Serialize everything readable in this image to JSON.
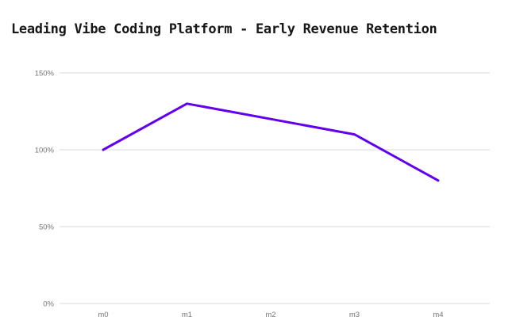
{
  "title": "Leading Vibe Coding Platform - Early Revenue Retention",
  "colors": {
    "line": "#6200ee",
    "grid": "#d9d9d9",
    "tick_label": "#757575",
    "title_text": "#171717",
    "background": "#ffffff"
  },
  "chart_data": {
    "type": "line",
    "categories": [
      "m0",
      "m1",
      "m2",
      "m3",
      "m4"
    ],
    "values": [
      100,
      130,
      120,
      110,
      80
    ],
    "title": "Leading Vibe Coding Platform - Early Revenue Retention",
    "xlabel": "",
    "ylabel": "",
    "ylim": [
      0,
      150
    ],
    "yticks": [
      0,
      50,
      100,
      150
    ],
    "ytick_labels": [
      "0%",
      "50%",
      "100%",
      "150%"
    ],
    "grid": true,
    "legend": false,
    "line_width": 3
  }
}
